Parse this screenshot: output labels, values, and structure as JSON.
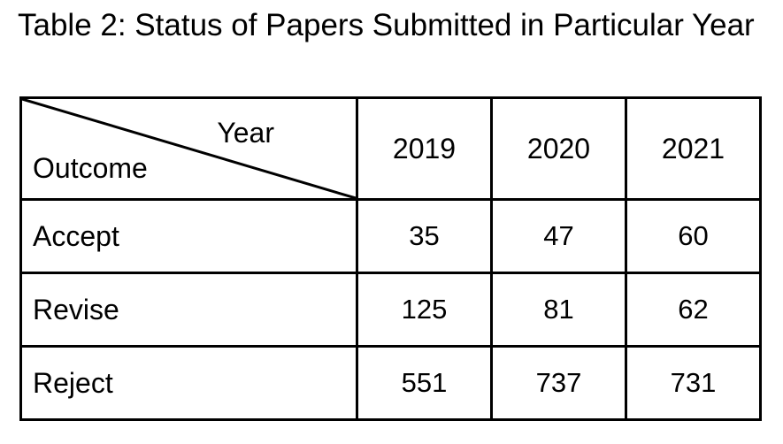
{
  "caption": "Table 2: Status of Papers Submitted in Particular Year",
  "table": {
    "corner": {
      "column_header_label": "Year",
      "row_header_label": "Outcome"
    },
    "columns": [
      "2019",
      "2020",
      "2021"
    ],
    "rows": [
      {
        "label": "Accept",
        "values": [
          "35",
          "47",
          "60"
        ]
      },
      {
        "label": "Revise",
        "values": [
          "125",
          "81",
          "62"
        ]
      },
      {
        "label": "Reject",
        "values": [
          "551",
          "737",
          "731"
        ]
      }
    ]
  }
}
